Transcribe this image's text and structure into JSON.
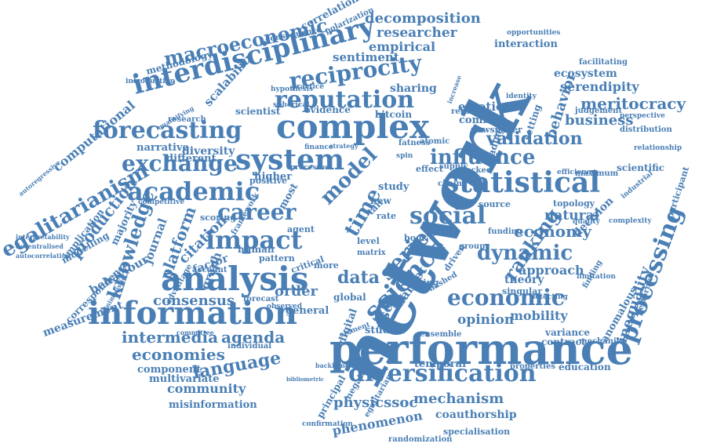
{
  "color": "#4a7fb5",
  "words": [
    "network",
    "performance",
    "analysis",
    "information",
    "complex",
    "system",
    "forecasting",
    "interdisciplinary",
    "reputation",
    "reciprocity",
    "statistical",
    "social",
    "processing",
    "cryptocurrencies",
    "diversification",
    "academic",
    "macroeconomic",
    "science",
    "impact",
    "career",
    "exchange",
    "influence",
    "economic",
    "series",
    "ranking",
    "dynamic",
    "model",
    "time",
    "data",
    "egalitarianism",
    "knowledge",
    "production",
    "computational",
    "meritocracy",
    "validation",
    "behavior",
    "business",
    "economy",
    "language",
    "economies",
    "intermedia",
    "agenda",
    "consensus",
    "citation",
    "platform",
    "physicssoc",
    "mechanism",
    "phenomenon",
    "community",
    "decomposition",
    "researcher",
    "empirical",
    "sentiment",
    "emotion",
    "scalability",
    "serendipity",
    "ecosystem",
    "approach",
    "theory",
    "opinion",
    "mobility",
    "inequality",
    "order",
    "user",
    "market",
    "methodology",
    "measurement",
    "behaviour",
    "journal",
    "graph",
    "factor",
    "natural",
    "decision",
    "anomalous",
    "topology",
    "interaction",
    "opportunities",
    "scientific",
    "relationship",
    "participant",
    "coauthorship",
    "specialisation",
    "randomization",
    "misinformation",
    "multivariate",
    "component",
    "studies",
    "general",
    "digital",
    "diversity",
    "narrative",
    "different",
    "scientist",
    "evidence",
    "bitcoin",
    "sharing",
    "common",
    "newspaper",
    "setting",
    "trading",
    "correlation",
    "polarization",
    "consequence",
    "introduction",
    "interpretability",
    "decentralised",
    "autocorrelation",
    "modelling",
    "implication",
    "correspondence",
    "majority",
    "scoring",
    "framework",
    "human",
    "pattern",
    "critical",
    "agent",
    "most",
    "higher",
    "positive",
    "processes",
    "finance",
    "strategy",
    "research",
    "quantifying",
    "study",
    "new",
    "tail",
    "rate",
    "level",
    "matrix",
    "driven",
    "making",
    "hashed",
    "funding",
    "source",
    "quality",
    "complexity",
    "maximum",
    "industrial",
    "efficiency",
    "locked",
    "supply",
    "effect",
    "chain",
    "atomic",
    "fatness",
    "identity",
    "judgement",
    "perspective",
    "facilitating",
    "distribution",
    "increase",
    "limitation",
    "singular",
    "finding",
    "detecting",
    "contract",
    "mechanic",
    "education",
    "temporal",
    "properties",
    "ensemble",
    "variance",
    "performer",
    "principal",
    "negative",
    "egalitarian",
    "confirmation",
    "bibliometric",
    "forecast",
    "observed",
    "account",
    "individual",
    "committee",
    "hypothesis",
    "practice",
    "spherical",
    "autoregressive",
    "competitive",
    "book",
    "group",
    "more",
    "global",
    "element",
    "minimalistic",
    "backbone",
    "returns",
    "advantage",
    "spin"
  ]
}
